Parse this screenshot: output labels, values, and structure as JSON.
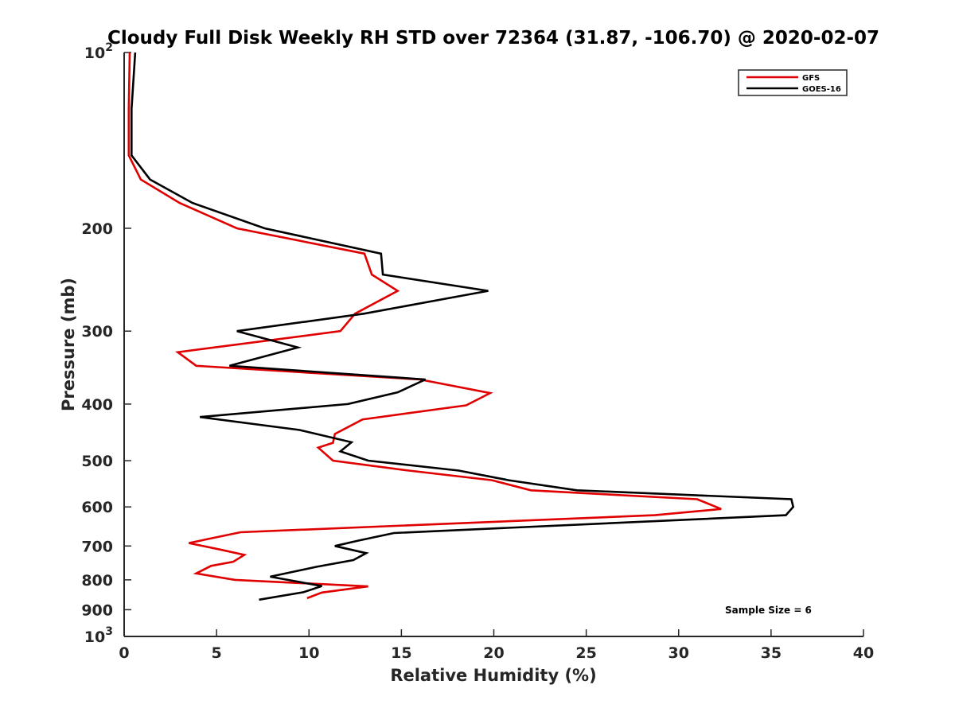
{
  "chart_data": {
    "type": "line",
    "title": "Cloudy Full Disk Weekly RH STD over 72364 (31.87, -106.70) @ 2020-02-07",
    "xlabel": "Relative Humidity (%)",
    "ylabel": "Pressure (mb)",
    "xlim": [
      0,
      40
    ],
    "ylim": [
      100,
      1000
    ],
    "y_scale": "log",
    "y_reversed": true,
    "grid": false,
    "legend_position": "top-right",
    "x_ticks": [
      0,
      5,
      10,
      15,
      20,
      25,
      30,
      35,
      40
    ],
    "x_tick_labels": [
      "0",
      "5",
      "10",
      "15",
      "20",
      "25",
      "30",
      "35",
      "40"
    ],
    "y_ticks": [
      {
        "value": 100,
        "base": "10",
        "exp": "2"
      },
      {
        "value": 200,
        "label": "200"
      },
      {
        "value": 300,
        "label": "300"
      },
      {
        "value": 400,
        "label": "400"
      },
      {
        "value": 500,
        "label": "500"
      },
      {
        "value": 600,
        "label": "600"
      },
      {
        "value": 700,
        "label": "700"
      },
      {
        "value": 800,
        "label": "800"
      },
      {
        "value": 900,
        "label": "900"
      },
      {
        "value": 1000,
        "base": "10",
        "exp": "3"
      }
    ],
    "series": [
      {
        "name": "GFS",
        "color": "#e00000",
        "points": [
          [
            0.3,
            100
          ],
          [
            0.25,
            125
          ],
          [
            0.25,
            150
          ],
          [
            0.9,
            165
          ],
          [
            3.0,
            181
          ],
          [
            6.1,
            200
          ],
          [
            13.0,
            221
          ],
          [
            13.4,
            240
          ],
          [
            14.8,
            256
          ],
          [
            12.5,
            280
          ],
          [
            11.7,
            300
          ],
          [
            2.9,
            326
          ],
          [
            3.9,
            344
          ],
          [
            16.0,
            363
          ],
          [
            19.8,
            383
          ],
          [
            18.5,
            402
          ],
          [
            12.9,
            425
          ],
          [
            11.4,
            450
          ],
          [
            11.3,
            466
          ],
          [
            10.5,
            475
          ],
          [
            11.3,
            500
          ],
          [
            15.4,
            520
          ],
          [
            19.9,
            540
          ],
          [
            22.0,
            562
          ],
          [
            31.0,
            582
          ],
          [
            32.3,
            605
          ],
          [
            28.7,
            620
          ],
          [
            6.3,
            663
          ],
          [
            3.5,
            692
          ],
          [
            5.3,
            711
          ],
          [
            6.5,
            725
          ],
          [
            5.9,
            745
          ],
          [
            4.7,
            757
          ],
          [
            3.9,
            780
          ],
          [
            6.0,
            800
          ],
          [
            13.2,
            821
          ],
          [
            10.7,
            841
          ],
          [
            9.9,
            860
          ]
        ]
      },
      {
        "name": "GOES-16",
        "color": "#000000",
        "points": [
          [
            0.6,
            100
          ],
          [
            0.4,
            125
          ],
          [
            0.4,
            150
          ],
          [
            1.4,
            165
          ],
          [
            3.7,
            181
          ],
          [
            7.6,
            200
          ],
          [
            13.9,
            221
          ],
          [
            14.0,
            240
          ],
          [
            19.7,
            256
          ],
          [
            13.0,
            280
          ],
          [
            6.1,
            300
          ],
          [
            9.4,
            320
          ],
          [
            5.7,
            344
          ],
          [
            16.3,
            363
          ],
          [
            14.8,
            382
          ],
          [
            12.1,
            400
          ],
          [
            4.1,
            421
          ],
          [
            9.5,
            443
          ],
          [
            12.3,
            465
          ],
          [
            11.7,
            482
          ],
          [
            13.2,
            500
          ],
          [
            18.1,
            520
          ],
          [
            20.8,
            540
          ],
          [
            24.5,
            562
          ],
          [
            36.1,
            582
          ],
          [
            36.2,
            600
          ],
          [
            35.8,
            620
          ],
          [
            14.6,
            665
          ],
          [
            12.7,
            685
          ],
          [
            11.4,
            700
          ],
          [
            13.1,
            720
          ],
          [
            12.4,
            740
          ],
          [
            10.4,
            760
          ],
          [
            7.9,
            790
          ],
          [
            10.7,
            820
          ],
          [
            9.7,
            840
          ],
          [
            7.3,
            865
          ]
        ]
      }
    ],
    "annotations": [
      "Sample Size = 6"
    ]
  }
}
